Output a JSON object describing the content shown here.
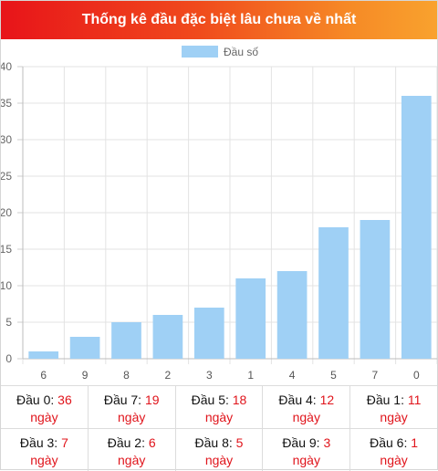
{
  "header": {
    "title": "Thống kê đầu đặc biệt lâu chưa về nhất"
  },
  "chart_data": {
    "type": "bar",
    "categories": [
      "6",
      "9",
      "8",
      "2",
      "3",
      "1",
      "4",
      "5",
      "7",
      "0"
    ],
    "series": [
      {
        "name": "Đầu số",
        "values": [
          1,
          3,
          5,
          6,
          7,
          11,
          12,
          18,
          19,
          36
        ],
        "color": "#9fd0f5"
      }
    ],
    "ylim": [
      0,
      40
    ],
    "yticks": [
      0,
      5,
      10,
      15,
      20,
      25,
      30,
      35,
      40
    ],
    "grid": true,
    "legend": "top-center"
  },
  "stats": {
    "unit": "ngày",
    "rows": [
      [
        {
          "label": "Đầu 0:",
          "value": "36"
        },
        {
          "label": "Đầu 7:",
          "value": "19"
        },
        {
          "label": "Đầu 5:",
          "value": "18"
        },
        {
          "label": "Đầu 4:",
          "value": "12"
        },
        {
          "label": "Đầu 1:",
          "value": "11"
        }
      ],
      [
        {
          "label": "Đầu 3:",
          "value": "7"
        },
        {
          "label": "Đầu 2:",
          "value": "6"
        },
        {
          "label": "Đầu 8:",
          "value": "5"
        },
        {
          "label": "Đầu 9:",
          "value": "3"
        },
        {
          "label": "Đầu 6:",
          "value": "1"
        }
      ]
    ]
  }
}
